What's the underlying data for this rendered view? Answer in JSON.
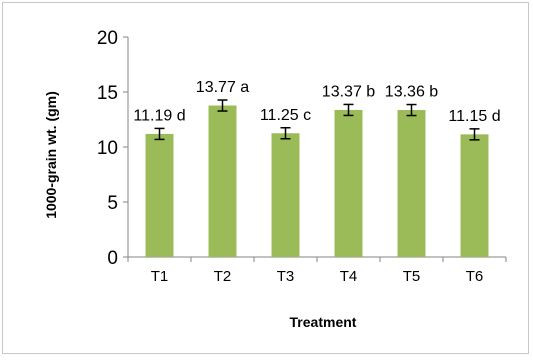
{
  "chart_data": {
    "type": "bar",
    "title": "",
    "xlabel": "Treatment",
    "ylabel": "1000-grain wt. (gm)",
    "ylim": [
      0,
      20
    ],
    "yticks": [
      0,
      5,
      10,
      15,
      20
    ],
    "categories": [
      "T1",
      "T2",
      "T3",
      "T4",
      "T5",
      "T6"
    ],
    "values": [
      11.19,
      13.77,
      11.25,
      13.37,
      13.36,
      11.15
    ],
    "error": [
      0.5,
      0.5,
      0.5,
      0.5,
      0.5,
      0.5
    ],
    "data_labels": [
      "11.19 d",
      "13.77 a",
      "11.25 c",
      "13.37 b",
      "13.36 b",
      "11.15 d"
    ],
    "grid": false,
    "legend": "none",
    "colors": {
      "bar": "#9bbb59",
      "axis": "#868686",
      "error_bar": "#000000"
    }
  }
}
